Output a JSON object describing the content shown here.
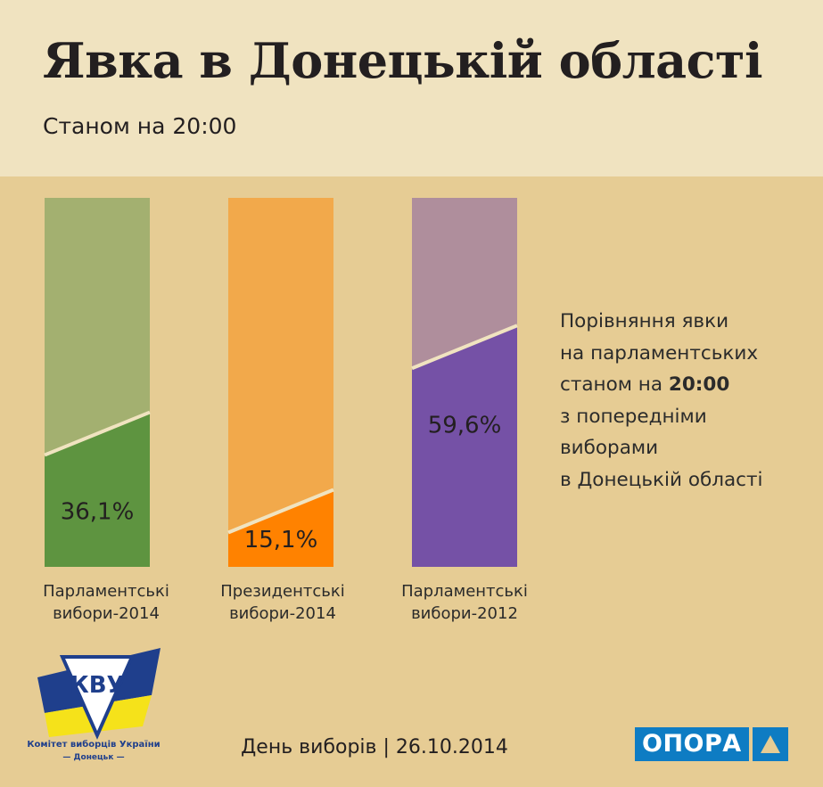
{
  "header": {
    "title": "Явка в Донецькій області",
    "subtitle": "Станом на 20:00"
  },
  "chart_data": {
    "type": "bar",
    "ylim": [
      0,
      100
    ],
    "categories": [
      "Парламентські вибори-2014",
      "Президентські вибори-2014",
      "Парламентські вибори-2012"
    ],
    "values": [
      36.1,
      15.1,
      59.6
    ],
    "value_labels": [
      "36,1%",
      "15,1%",
      "59,6%"
    ],
    "colors": [
      "#5e9440",
      "#ff8200",
      "#7551a6"
    ],
    "background_colors": [
      "#a3b070",
      "#f2a94b",
      "#af8e9c"
    ],
    "grid": false,
    "legend": "none"
  },
  "bar_labels": [
    {
      "line1": "Парламентські",
      "line2": "вибори-2014"
    },
    {
      "line1": "Президентські",
      "line2": "вибори-2014"
    },
    {
      "line1": "Парламентські",
      "line2": "вибори-2012"
    }
  ],
  "side_note": {
    "line1": "Порівняння явки",
    "line2": "на парламентських",
    "line3_prefix": "станом на ",
    "line3_bold": "20:00",
    "line4": "з попередніми",
    "line5": "виборами",
    "line6": "в Донецькій області"
  },
  "footer": {
    "text": "День виборів | 26.10.2014",
    "logo_left_caption1": "Комітет виборців України",
    "logo_left_caption2": "— Донецьк —",
    "logo_left_text": "КВУ",
    "logo_right_text": "ОПОРА"
  },
  "colors": {
    "header_bg": "#f0e3c0",
    "page_bg": "#e6cc94",
    "opora_blue": "#0e7cc3",
    "kvu_blue": "#1f3f8c",
    "kvu_yellow": "#f5e21a"
  },
  "icons": {
    "logo_left": "kvu-logo-icon",
    "logo_right": "opora-triangle-icon"
  }
}
